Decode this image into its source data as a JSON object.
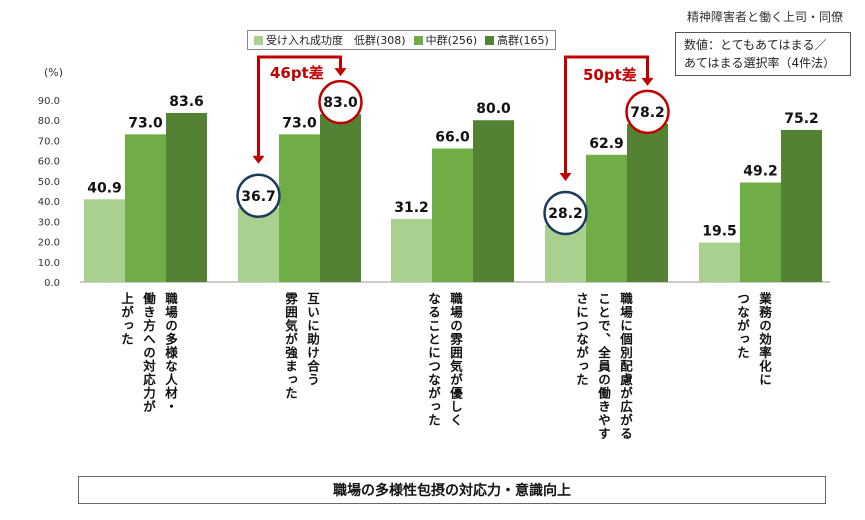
{
  "chart_data": {
    "type": "bar",
    "title": "職場の多様性包摂の対応力・意識向上",
    "ylabel": "(%)",
    "ylim": [
      0,
      90
    ],
    "yticks": [
      "0.0",
      "10.0",
      "20.0",
      "30.0",
      "40.0",
      "50.0",
      "60.0",
      "70.0",
      "80.0",
      "90.0"
    ],
    "categories": [
      [
        "職場の多様な人材・",
        "働き方への対応力が",
        "上がった"
      ],
      [
        "互いに助け合う",
        "雰囲気が強まった"
      ],
      [
        "職場の雰囲気が優しく",
        "なることにつながった"
      ],
      [
        "職場に個別配慮が広がる",
        "ことで、全員の働きやす",
        "さにつながった"
      ],
      [
        "業務の効率化に",
        "つながった"
      ]
    ],
    "series": [
      {
        "name": "受け入れ成功度　低群(308)",
        "color": "#a9d08e",
        "values": [
          40.9,
          36.7,
          31.2,
          28.2,
          19.5
        ],
        "labels": [
          "40.9",
          "36.7",
          "31.2",
          "28.2",
          "19.5"
        ]
      },
      {
        "name": "中群(256)",
        "color": "#70ad47",
        "values": [
          73.0,
          73.0,
          66.0,
          62.9,
          49.2
        ],
        "labels": [
          "73.0",
          "73.0",
          "66.0",
          "62.9",
          "49.2"
        ]
      },
      {
        "name": "高群(165)",
        "color": "#548235",
        "values": [
          83.6,
          83.0,
          80.0,
          78.2,
          75.2
        ],
        "labels": [
          "83.6",
          "83.0",
          "80.0",
          "78.2",
          "75.2"
        ]
      }
    ],
    "annotations": [
      {
        "category_index": 1,
        "low": 36.7,
        "high": 83.0,
        "label": "46pt差"
      },
      {
        "category_index": 3,
        "low": 28.2,
        "high": 78.2,
        "label": "50pt差"
      }
    ]
  },
  "header": {
    "top_title": "精神障害者と働く上司・同僚",
    "note_line1": "数値：とてもあてはまる／",
    "note_line2": "あてはまる選択率（4件法）"
  },
  "colors": {
    "accent_red": "#c00000",
    "circle_navy": "#1f3a5f",
    "axis": "#999999"
  }
}
